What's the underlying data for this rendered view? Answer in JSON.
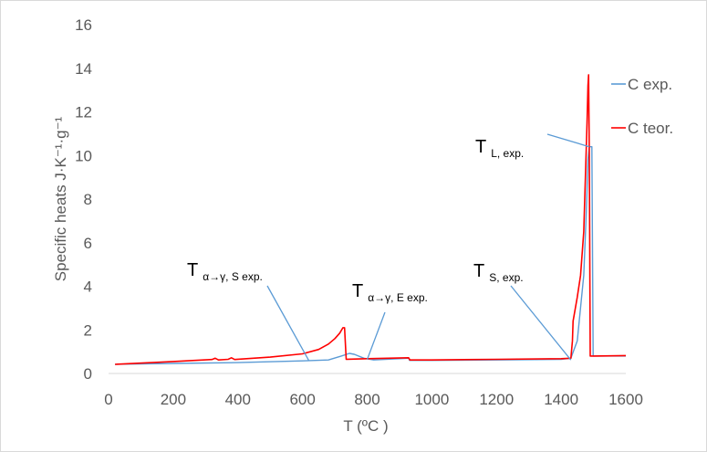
{
  "chart_data": {
    "type": "line",
    "xlabel": "T (ºC )",
    "ylabel": "Specific heats J·K⁻¹·g⁻¹",
    "xlim": [
      0,
      1600
    ],
    "ylim": [
      0,
      16
    ],
    "xticks": [
      0,
      200,
      400,
      600,
      800,
      1000,
      1200,
      1400,
      1600
    ],
    "yticks": [
      0,
      2,
      4,
      6,
      8,
      10,
      12,
      14,
      16
    ],
    "grid": false,
    "legend_position": "top-right",
    "series": [
      {
        "name": "C exp.",
        "color": "#5b9bd5",
        "x": [
          20,
          200,
          400,
          600,
          680,
          720,
          745,
          760,
          790,
          820,
          900,
          929,
          931,
          1000,
          1200,
          1400,
          1430,
          1450,
          1470,
          1478,
          1483,
          1487,
          1495,
          1499,
          1510,
          1550,
          1600
        ],
        "y": [
          0.42,
          0.46,
          0.5,
          0.58,
          0.62,
          0.8,
          0.92,
          0.88,
          0.7,
          0.62,
          0.68,
          0.7,
          0.6,
          0.6,
          0.62,
          0.65,
          0.7,
          1.5,
          4.5,
          7.5,
          9.8,
          10.4,
          10.4,
          0.8,
          0.8,
          0.8,
          0.8
        ]
      },
      {
        "name": "C teor.",
        "color": "#ff0000",
        "x": [
          20,
          200,
          320,
          330,
          340,
          370,
          380,
          390,
          500,
          600,
          650,
          680,
          700,
          715,
          725,
          730,
          735,
          800,
          928,
          932,
          1000,
          1200,
          1400,
          1430,
          1435,
          1437,
          1450,
          1460,
          1470,
          1475,
          1480,
          1483,
          1485,
          1487,
          1490,
          1500,
          1600
        ],
        "y": [
          0.42,
          0.55,
          0.64,
          0.7,
          0.62,
          0.65,
          0.72,
          0.64,
          0.75,
          0.9,
          1.1,
          1.35,
          1.6,
          1.85,
          2.1,
          2.1,
          0.65,
          0.68,
          0.72,
          0.62,
          0.62,
          0.65,
          0.68,
          0.7,
          1.5,
          2.4,
          3.5,
          4.5,
          6.5,
          9.0,
          11.5,
          13.2,
          13.7,
          10.0,
          0.8,
          0.8,
          0.82
        ]
      }
    ],
    "annotations": [
      {
        "main": "T",
        "sub": "α→γ, S exp.",
        "points_to": [
          620,
          0.58
        ]
      },
      {
        "main": "T",
        "sub": "α→γ, E exp.",
        "points_to": [
          800,
          0.64
        ]
      },
      {
        "main": "T",
        "sub": "S, exp.",
        "points_to": [
          1430,
          0.62
        ]
      },
      {
        "main": "T",
        "sub": "L, exp.",
        "points_to": [
          1487,
          10.4
        ]
      }
    ]
  }
}
